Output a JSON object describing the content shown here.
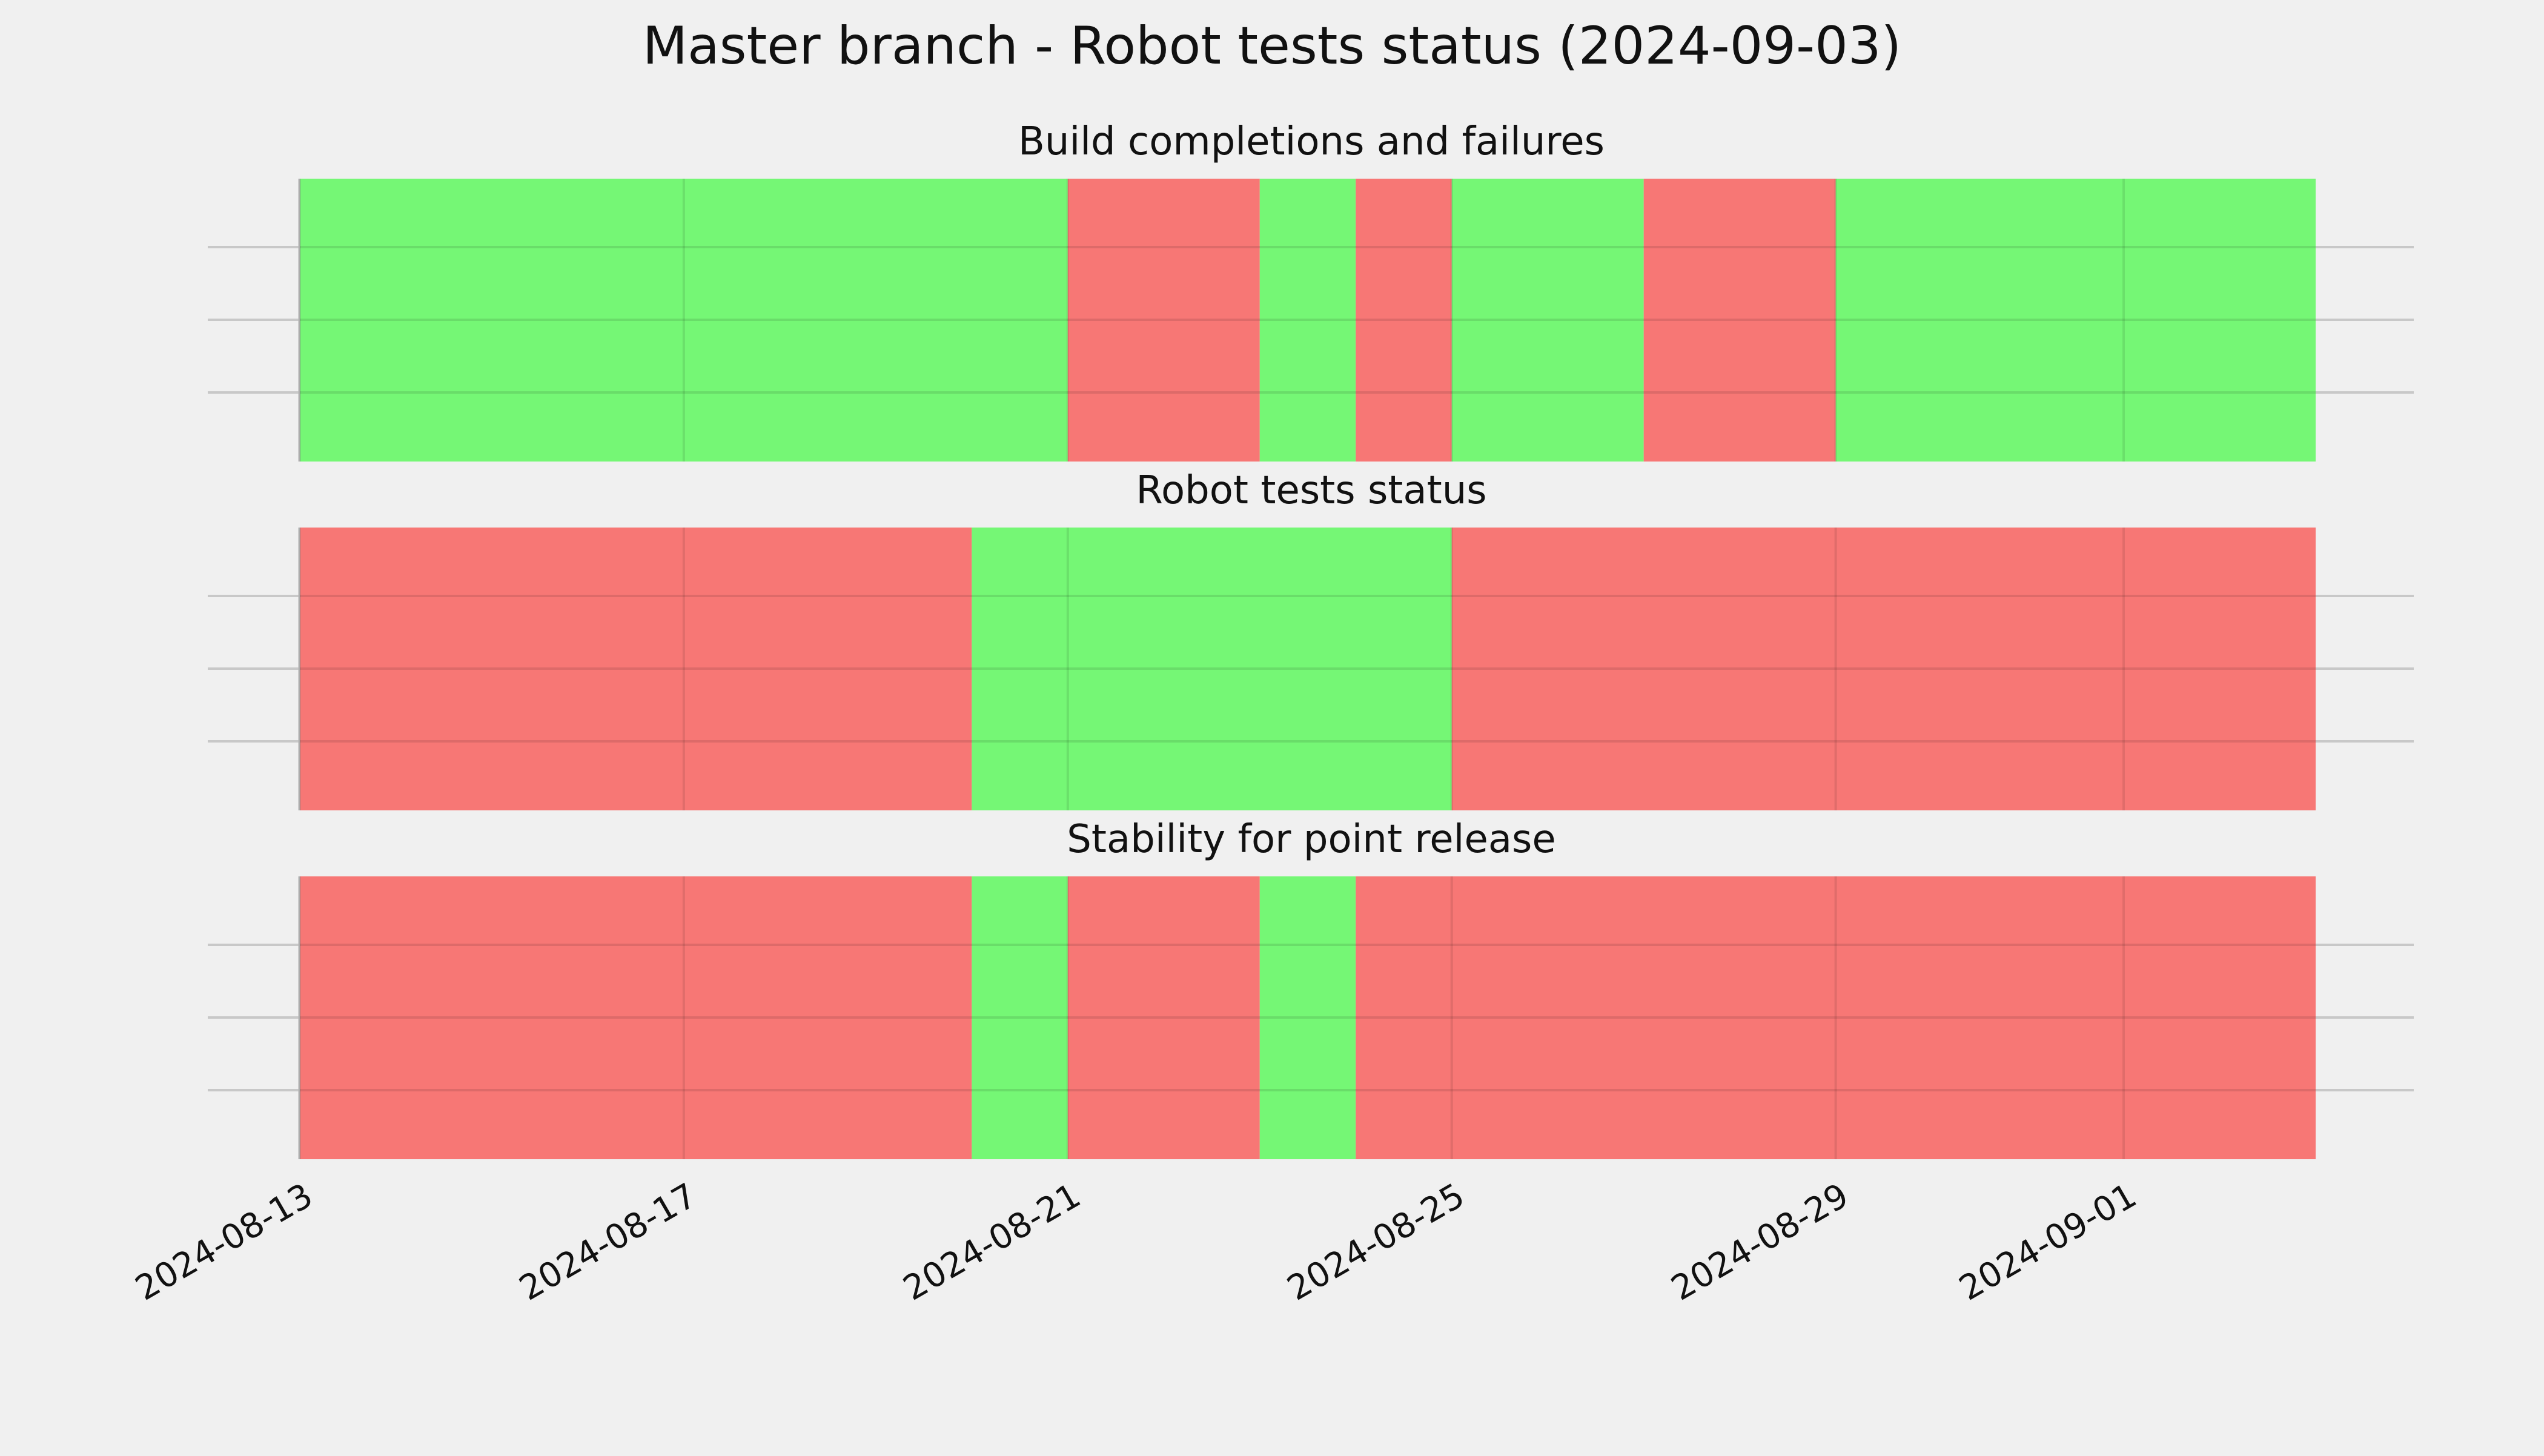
{
  "chart_data": {
    "type": "timeline",
    "title": "Master branch - Robot tests status (2024-09-03)",
    "x_range": [
      "2024-08-13",
      "2024-09-03"
    ],
    "x_ticks": [
      "2024-08-13",
      "2024-08-17",
      "2024-08-21",
      "2024-08-25",
      "2024-08-29",
      "2024-09-01"
    ],
    "grid": true,
    "colors": {
      "ok": "#75f775",
      "fail": "#f77775"
    },
    "panels": [
      {
        "title": "Build completions and failures",
        "segments": [
          {
            "start": "2024-08-13",
            "end": "2024-08-21",
            "status": "ok"
          },
          {
            "start": "2024-08-21",
            "end": "2024-08-23",
            "status": "fail"
          },
          {
            "start": "2024-08-23",
            "end": "2024-08-24",
            "status": "ok"
          },
          {
            "start": "2024-08-24",
            "end": "2024-08-25",
            "status": "fail"
          },
          {
            "start": "2024-08-25",
            "end": "2024-08-27",
            "status": "ok"
          },
          {
            "start": "2024-08-27",
            "end": "2024-08-29",
            "status": "fail"
          },
          {
            "start": "2024-08-29",
            "end": "2024-09-03",
            "status": "ok"
          }
        ]
      },
      {
        "title": "Robot tests status",
        "segments": [
          {
            "start": "2024-08-13",
            "end": "2024-08-20",
            "status": "fail"
          },
          {
            "start": "2024-08-20",
            "end": "2024-08-25",
            "status": "ok"
          },
          {
            "start": "2024-08-25",
            "end": "2024-09-03",
            "status": "fail"
          }
        ]
      },
      {
        "title": "Stability for point release",
        "segments": [
          {
            "start": "2024-08-13",
            "end": "2024-08-20",
            "status": "fail"
          },
          {
            "start": "2024-08-20",
            "end": "2024-08-21",
            "status": "ok"
          },
          {
            "start": "2024-08-21",
            "end": "2024-08-23",
            "status": "fail"
          },
          {
            "start": "2024-08-23",
            "end": "2024-08-24",
            "status": "ok"
          },
          {
            "start": "2024-08-24",
            "end": "2024-09-03",
            "status": "fail"
          }
        ]
      }
    ]
  }
}
